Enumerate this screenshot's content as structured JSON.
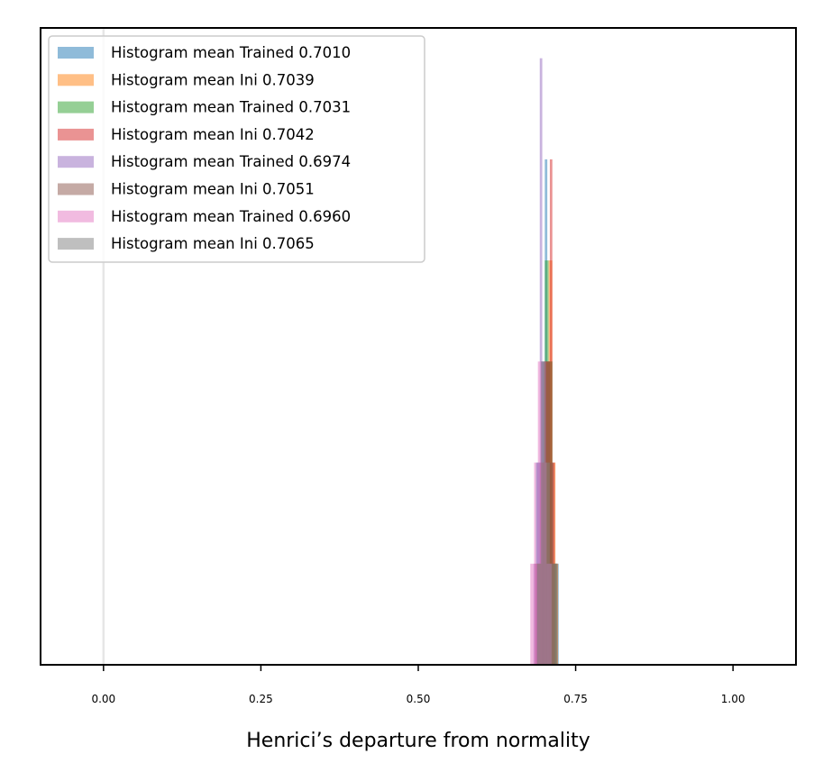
{
  "chart_data": {
    "type": "bar",
    "title": "",
    "xlabel": "Henrici’s departure from normality",
    "ylabel": "",
    "xlim": [
      -0.1,
      1.1
    ],
    "ylim": [
      0,
      6.3
    ],
    "xticks": [
      0.0,
      0.25,
      0.5,
      0.75,
      1.0
    ],
    "xtick_labels": [
      "0.00",
      "0.25",
      "0.50",
      "0.75",
      "1.00"
    ],
    "yticks_visible": false,
    "grid": false,
    "vline": {
      "x": 0.0,
      "color": "#e6e6e6"
    },
    "legend": {
      "position": "top-left"
    },
    "series": [
      {
        "name": "Histogram mean Trained 0.7010",
        "color": "#1f77b4",
        "bins": [
          {
            "x0": 0.687,
            "x1": 0.695,
            "value": 2
          },
          {
            "x0": 0.695,
            "x1": 0.701,
            "value": 3
          },
          {
            "x0": 0.701,
            "x1": 0.705,
            "value": 5
          },
          {
            "x0": 0.705,
            "x1": 0.713,
            "value": 3
          },
          {
            "x0": 0.713,
            "x1": 0.723,
            "value": 1
          }
        ]
      },
      {
        "name": "Histogram mean Ini 0.7039",
        "color": "#ff7f0e",
        "bins": [
          {
            "x0": 0.691,
            "x1": 0.699,
            "value": 1
          },
          {
            "x0": 0.699,
            "x1": 0.707,
            "value": 3
          },
          {
            "x0": 0.707,
            "x1": 0.713,
            "value": 4
          },
          {
            "x0": 0.713,
            "x1": 0.718,
            "value": 2
          },
          {
            "x0": 0.718,
            "x1": 0.722,
            "value": 1
          }
        ]
      },
      {
        "name": "Histogram mean Trained 0.7031",
        "color": "#2ca02c",
        "bins": [
          {
            "x0": 0.688,
            "x1": 0.695,
            "value": 1
          },
          {
            "x0": 0.695,
            "x1": 0.701,
            "value": 2
          },
          {
            "x0": 0.701,
            "x1": 0.707,
            "value": 4
          },
          {
            "x0": 0.707,
            "x1": 0.713,
            "value": 3
          },
          {
            "x0": 0.713,
            "x1": 0.719,
            "value": 1
          }
        ]
      },
      {
        "name": "Histogram mean Ini 0.7042",
        "color": "#d62728",
        "bins": [
          {
            "x0": 0.685,
            "x1": 0.693,
            "value": 1
          },
          {
            "x0": 0.693,
            "x1": 0.701,
            "value": 2
          },
          {
            "x0": 0.701,
            "x1": 0.709,
            "value": 3
          },
          {
            "x0": 0.709,
            "x1": 0.713,
            "value": 5
          },
          {
            "x0": 0.713,
            "x1": 0.717,
            "value": 2
          }
        ]
      },
      {
        "name": "Histogram mean Trained 0.6974",
        "color": "#9467bd",
        "bins": [
          {
            "x0": 0.683,
            "x1": 0.689,
            "value": 1
          },
          {
            "x0": 0.689,
            "x1": 0.693,
            "value": 2
          },
          {
            "x0": 0.693,
            "x1": 0.697,
            "value": 6
          },
          {
            "x0": 0.697,
            "x1": 0.703,
            "value": 3
          },
          {
            "x0": 0.703,
            "x1": 0.711,
            "value": 1
          }
        ]
      },
      {
        "name": "Histogram mean Ini 0.7051",
        "color": "#8c564b",
        "bins": [
          {
            "x0": 0.689,
            "x1": 0.697,
            "value": 1
          },
          {
            "x0": 0.697,
            "x1": 0.703,
            "value": 2
          },
          {
            "x0": 0.703,
            "x1": 0.709,
            "value": 3
          },
          {
            "x0": 0.709,
            "x1": 0.715,
            "value": 2
          },
          {
            "x0": 0.715,
            "x1": 0.721,
            "value": 1
          }
        ]
      },
      {
        "name": "Histogram mean Trained 0.6960",
        "color": "#e377c2",
        "bins": [
          {
            "x0": 0.678,
            "x1": 0.684,
            "value": 1
          },
          {
            "x0": 0.684,
            "x1": 0.69,
            "value": 2
          },
          {
            "x0": 0.69,
            "x1": 0.698,
            "value": 3
          },
          {
            "x0": 0.698,
            "x1": 0.704,
            "value": 2
          },
          {
            "x0": 0.704,
            "x1": 0.712,
            "value": 1
          }
        ]
      },
      {
        "name": "Histogram mean Ini 0.7065",
        "color": "#7f7f7f",
        "bins": [
          {
            "x0": 0.689,
            "x1": 0.695,
            "value": 1
          },
          {
            "x0": 0.695,
            "x1": 0.701,
            "value": 3
          },
          {
            "x0": 0.701,
            "x1": 0.709,
            "value": 2
          },
          {
            "x0": 0.709,
            "x1": 0.717,
            "value": 1
          },
          {
            "x0": 0.717,
            "x1": 0.721,
            "value": 1
          }
        ]
      }
    ]
  }
}
